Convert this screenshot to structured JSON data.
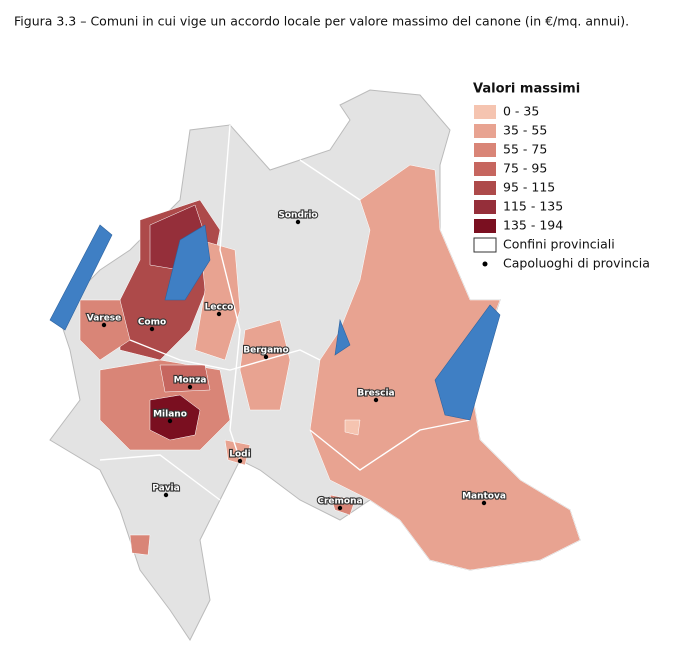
{
  "title": "Figura 3.3 – Comuni in cui vige un accordo locale per valore massimo del canone (in €/mq. annui).",
  "legend": {
    "title": "Valori massimi",
    "classes": [
      {
        "label": "0 - 35",
        "color": "#f5c4b0"
      },
      {
        "label": "35 - 55",
        "color": "#e8a391"
      },
      {
        "label": "55 - 75",
        "color": "#d98577"
      },
      {
        "label": "75 - 95",
        "color": "#c6665f"
      },
      {
        "label": "95 - 115",
        "color": "#ad4a4a"
      },
      {
        "label": "115 - 135",
        "color": "#952f3a"
      },
      {
        "label": "135 - 194",
        "color": "#7a0f20"
      }
    ],
    "borders": "Confini provinciali",
    "capitals": "Capoluoghi di provincia"
  },
  "cities": [
    "Sondrio",
    "Varese",
    "Como",
    "Lecco",
    "Bergamo",
    "Monza",
    "Milano",
    "Brescia",
    "Lodi",
    "Pavia",
    "Cremona",
    "Mantova"
  ]
}
